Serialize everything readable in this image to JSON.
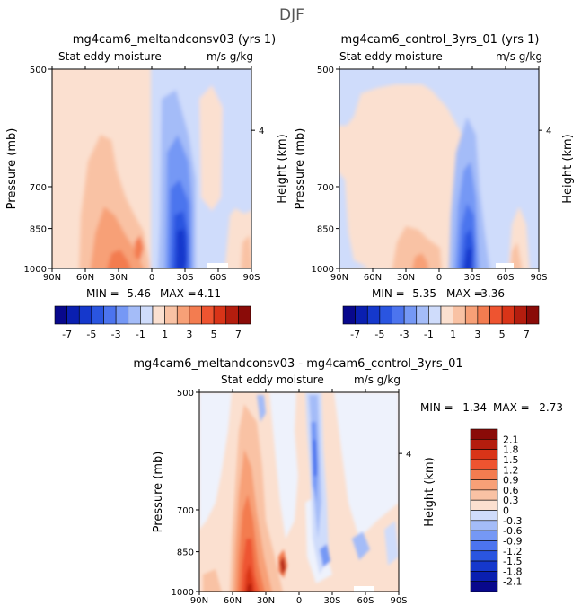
{
  "title": "DJF",
  "chart_data": {
    "type": "heatmap",
    "panels": [
      {
        "id": "p1",
        "title": "mg4cam6_meltandconsv03 (yrs 1)",
        "variable": "Stat eddy moisture",
        "units": "m/s g/kg",
        "ylabel": "Pressure (mb)",
        "ylabel_right": "Height (km)",
        "yticks": [
          "500",
          "700",
          "850",
          "1000"
        ],
        "yticks_right": [
          "4"
        ],
        "xticks": [
          "90N",
          "60N",
          "30N",
          "0",
          "30S",
          "60S",
          "90S"
        ],
        "xlim": [
          90,
          -90
        ],
        "ylim": [
          1000,
          500
        ],
        "min_label": "MIN =",
        "min_value": "-5.46",
        "max_label": "MAX =",
        "max_value": "4.11"
      },
      {
        "id": "p2",
        "title": "mg4cam6_control_3yrs_01 (yrs 1)",
        "variable": "Stat eddy moisture",
        "units": "m/s g/kg",
        "ylabel": "Pressure (mb)",
        "ylabel_right": "Height (km)",
        "yticks": [
          "500",
          "700",
          "850",
          "1000"
        ],
        "yticks_right": [
          "4"
        ],
        "xticks": [
          "90N",
          "60N",
          "30N",
          "0",
          "30S",
          "60S",
          "90S"
        ],
        "xlim": [
          90,
          -90
        ],
        "ylim": [
          1000,
          500
        ],
        "min_label": "MIN =",
        "min_value": "-5.35",
        "max_label": "MAX =",
        "max_value": "3.36"
      },
      {
        "id": "p3",
        "title": "mg4cam6_meltandconsv03 - mg4cam6_control_3yrs_01",
        "variable": "Stat eddy moisture",
        "units": "m/s g/kg",
        "ylabel": "Pressure (mb)",
        "ylabel_right": "Height (km)",
        "yticks": [
          "500",
          "700",
          "850",
          "1000"
        ],
        "yticks_right": [
          "4"
        ],
        "xticks": [
          "90N",
          "60N",
          "30N",
          "0",
          "30S",
          "60S",
          "90S"
        ],
        "xlim": [
          90,
          -90
        ],
        "ylim": [
          1000,
          500
        ],
        "min_label": "MIN =",
        "min_value": "-1.34",
        "max_label": "MAX =",
        "max_value": "2.73"
      }
    ],
    "colorbar_top": {
      "labels": [
        "-7",
        "-5",
        "-3",
        "-1",
        "1",
        "3",
        "5",
        "7"
      ],
      "colors": [
        "#08088c",
        "#0a1fb0",
        "#1538cc",
        "#2a55e0",
        "#4c74ee",
        "#7598f5",
        "#a4bcf8",
        "#cfdcfb",
        "#fbe0d0",
        "#f9c2a4",
        "#f7a077",
        "#f37c50",
        "#ee5430",
        "#d93418",
        "#b41d0e",
        "#8a0b08"
      ]
    },
    "colorbar_diff": {
      "labels": [
        "2.1",
        "1.8",
        "1.5",
        "1.2",
        "0.9",
        "0.6",
        "0.3",
        "0",
        "-0.3",
        "-0.6",
        "-0.9",
        "-1.2",
        "-1.5",
        "-1.8",
        "-2.1"
      ],
      "colors": [
        "#8a0b08",
        "#b41d0e",
        "#d93418",
        "#ee5430",
        "#f37c50",
        "#f7a077",
        "#f9c2a4",
        "#fbe0d0",
        "#cfdcfb",
        "#a4bcf8",
        "#7598f5",
        "#4c74ee",
        "#2a55e0",
        "#1538cc",
        "#0a1fb0",
        "#08088c"
      ]
    }
  }
}
